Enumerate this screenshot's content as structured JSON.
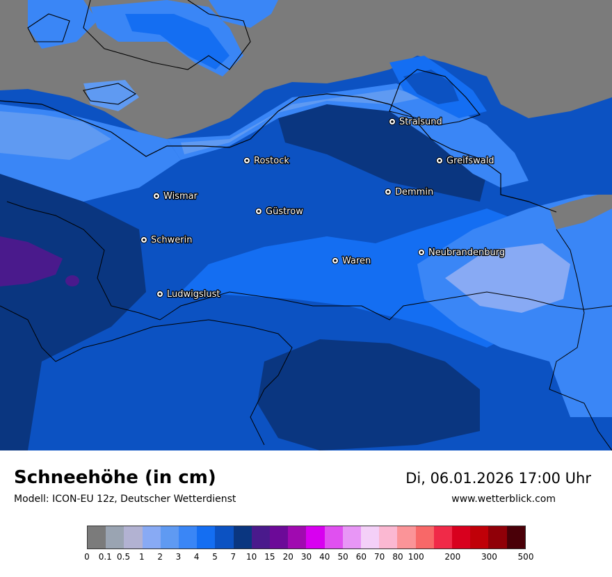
{
  "map": {
    "cities": [
      {
        "name": "Stralsund",
        "pos": [
          564,
          175
        ]
      },
      {
        "name": "Rostock",
        "pos": [
          355,
          231
        ]
      },
      {
        "name": "Greifswald",
        "pos": [
          632,
          231
        ]
      },
      {
        "name": "Wismar",
        "pos": [
          225,
          282
        ]
      },
      {
        "name": "Demmin",
        "pos": [
          558,
          276
        ]
      },
      {
        "name": "Güstrow",
        "pos": [
          372,
          304
        ]
      },
      {
        "name": "Schwerin",
        "pos": [
          207,
          345
        ]
      },
      {
        "name": "Neubrandenburg",
        "pos": [
          606,
          363
        ]
      },
      {
        "name": "Waren",
        "pos": [
          482,
          375
        ]
      },
      {
        "name": "Ludwigslust",
        "pos": [
          230,
          423
        ]
      }
    ]
  },
  "footer": {
    "title": "Schneehöhe (in cm)",
    "subtitle": "Modell: ICON-EU 12z, Deutscher Wetterdienst",
    "datetime": "Di, 06.01.2026 17:00 Uhr",
    "website": "www.wetterblick.com"
  },
  "legend": {
    "colors": [
      "#7b7b7b",
      "#9aa4b2",
      "#b2b2d2",
      "#88aaf4",
      "#5f9af2",
      "#3a86f6",
      "#146ef2",
      "#0c52c2",
      "#0a3680",
      "#4a1a8c",
      "#6c0a98",
      "#a00ab0",
      "#d800f0",
      "#e050f0",
      "#e896f6",
      "#f4d0f8",
      "#fbb8d2",
      "#fb9498",
      "#f86868",
      "#f02a48",
      "#d8001e",
      "#c00008",
      "#900008",
      "#4a0008"
    ],
    "ticks": [
      "0",
      "0.1",
      "0.5",
      "1",
      "2",
      "3",
      "4",
      "5",
      "7",
      "10",
      "15",
      "20",
      "30",
      "40",
      "50",
      "60",
      "70",
      "80",
      "100",
      "200",
      "300",
      "500"
    ]
  }
}
